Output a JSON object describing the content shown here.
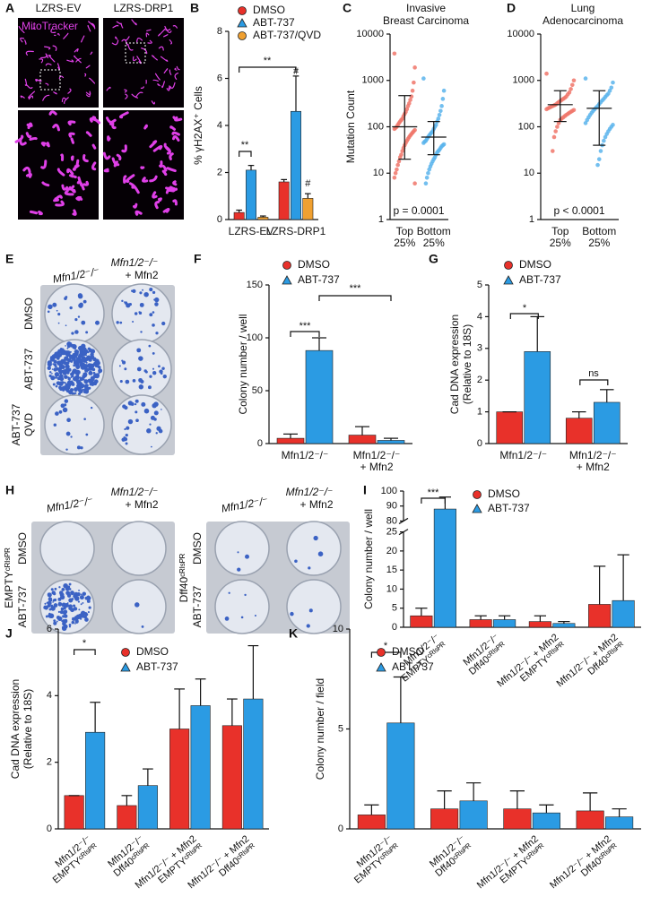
{
  "figures": [
    {
      "panel": "A",
      "columns": [
        "LZRS-EV",
        "LZRS-DRP1"
      ],
      "stain": "MitoTracker"
    },
    {
      "panel": "E",
      "columns": [
        [
          "Mfn1/2⁻/⁻"
        ],
        [
          "Mfn1/2⁻/⁻",
          "+ Mfn2"
        ]
      ],
      "rows": [
        [
          "DMSO"
        ],
        [
          "ABT-737"
        ],
        [
          "ABT-737",
          "QVD"
        ]
      ]
    },
    {
      "panel": "H",
      "plates": [
        {
          "label": "EMPTYᶜᴿᴵˢᴾᴿ",
          "columns": [
            [
              "Mfn1/2⁻/⁻"
            ],
            [
              "Mfn1/2⁻/⁻",
              "+ Mfn2"
            ]
          ],
          "rows": [
            "DMSO",
            "ABT-737"
          ]
        },
        {
          "label": "Dff40ᶜᴿᴵˢᴾᴿ",
          "columns": [
            [
              "Mfn1/2⁻/⁻"
            ],
            [
              "Mfn1/2⁻/⁻",
              "+ Mfn2"
            ]
          ],
          "rows": [
            "DMSO",
            "ABT-737"
          ]
        }
      ]
    }
  ],
  "chart_data": [
    {
      "panel": "B",
      "type": "bar",
      "ylabel": [
        "% γH2AX⁺ Cells"
      ],
      "categories": [
        [
          "LZRS-EV"
        ],
        [
          "LZRS-DRP1"
        ]
      ],
      "series": [
        {
          "name": "DMSO",
          "color": "#e8312a",
          "marker": "circle",
          "values": [
            0.3,
            1.6
          ],
          "errors": [
            0.1,
            0.1
          ]
        },
        {
          "name": "ABT-737",
          "color": "#2b9be3",
          "marker": "triangle",
          "values": [
            2.1,
            4.6
          ],
          "errors": [
            0.2,
            1.5
          ]
        },
        {
          "name": "ABT-737/QVD",
          "color": "#f0a030",
          "marker": "circle",
          "values": [
            0.1,
            0.9
          ],
          "errors": [
            0.05,
            0.2
          ]
        }
      ],
      "ylim": [
        0,
        8
      ],
      "yticks": [
        0,
        2,
        4,
        6,
        8
      ],
      "annotations": [
        "**",
        "**",
        "#",
        "#"
      ]
    },
    {
      "panel": "C",
      "type": "dot",
      "title": [
        "Invasive",
        "Breast Carcinoma"
      ],
      "ylabel": [
        "Mutation Count"
      ],
      "categories": [
        [
          "Top",
          "25%"
        ],
        [
          "Bottom",
          "25%"
        ]
      ],
      "colors": [
        "#f0766a",
        "#5ab4ec"
      ],
      "points": [
        [
          3800,
          1900,
          900,
          600,
          450,
          380,
          320,
          280,
          240,
          210,
          190,
          170,
          150,
          140,
          130,
          120,
          110,
          100,
          95,
          90,
          85,
          80,
          75,
          70,
          65,
          60,
          55,
          50,
          45,
          40,
          35,
          30,
          25,
          22,
          18,
          15,
          12,
          10,
          8,
          6
        ],
        [
          1100,
          600,
          400,
          280,
          220,
          180,
          150,
          130,
          110,
          100,
          90,
          80,
          75,
          70,
          65,
          60,
          55,
          50,
          48,
          45,
          42,
          40,
          38,
          35,
          32,
          30,
          28,
          25,
          22,
          20,
          18,
          16,
          14,
          12,
          10,
          8,
          6
        ]
      ],
      "means": [
        100,
        60
      ],
      "whiskers": [
        [
          20,
          470
        ],
        [
          25,
          130
        ]
      ],
      "log": true,
      "ylim": [
        1,
        10000
      ],
      "yticks": [
        1,
        10,
        100,
        1000,
        10000
      ],
      "annotations": [
        "p = 0.0001"
      ]
    },
    {
      "panel": "D",
      "type": "dot",
      "title": [
        "Lung",
        "Adenocarcinoma"
      ],
      "categories": [
        [
          "Top",
          "25%"
        ],
        [
          "Bottom",
          "25%"
        ]
      ],
      "colors": [
        "#f0766a",
        "#5ab4ec"
      ],
      "points": [
        [
          1400,
          1000,
          800,
          650,
          550,
          500,
          450,
          420,
          400,
          380,
          360,
          340,
          320,
          300,
          290,
          280,
          270,
          260,
          250,
          240,
          230,
          220,
          210,
          200,
          190,
          180,
          170,
          160,
          150,
          140,
          120,
          100,
          80,
          60,
          30
        ],
        [
          1100,
          900,
          700,
          600,
          520,
          480,
          440,
          400,
          370,
          340,
          310,
          280,
          260,
          240,
          220,
          200,
          180,
          160,
          140,
          120,
          110,
          100,
          90,
          80,
          70,
          60,
          50,
          40,
          30,
          20,
          15
        ]
      ],
      "means": [
        300,
        250
      ],
      "whiskers": [
        [
          130,
          600
        ],
        [
          40,
          600
        ]
      ],
      "log": true,
      "ylim": [
        1,
        10000
      ],
      "yticks": [
        1,
        10,
        100,
        1000,
        10000
      ],
      "annotations": [
        "p < 0.0001"
      ]
    },
    {
      "panel": "F",
      "type": "bar",
      "ylabel": [
        "Colony number / well"
      ],
      "categories": [
        [
          "Mfn1/2⁻/⁻"
        ],
        [
          "Mfn1/2⁻/⁻",
          "+ Mfn2"
        ]
      ],
      "series": [
        {
          "name": "DMSO",
          "color": "#e8312a",
          "marker": "circle",
          "values": [
            5,
            8
          ],
          "errors": [
            4,
            8
          ]
        },
        {
          "name": "ABT-737",
          "color": "#2b9be3",
          "marker": "triangle",
          "values": [
            88,
            3
          ],
          "errors": [
            12,
            2
          ]
        }
      ],
      "ylim": [
        0,
        150
      ],
      "yticks": [
        0,
        50,
        100,
        150
      ],
      "annotations": [
        "***",
        "***"
      ]
    },
    {
      "panel": "G",
      "type": "bar",
      "ylabel": [
        "Cad DNA expression",
        "(Relative to 18S)"
      ],
      "categories": [
        [
          "Mfn1/2⁻/⁻"
        ],
        [
          "Mfn1/2⁻/⁻",
          "+ Mfn2"
        ]
      ],
      "series": [
        {
          "name": "DMSO",
          "color": "#e8312a",
          "marker": "circle",
          "values": [
            1.0,
            0.8
          ],
          "errors": [
            0,
            0.2
          ]
        },
        {
          "name": "ABT-737",
          "color": "#2b9be3",
          "marker": "triangle",
          "values": [
            2.9,
            1.3
          ],
          "errors": [
            1.1,
            0.4
          ]
        }
      ],
      "ylim": [
        0,
        5
      ],
      "yticks": [
        0,
        1,
        2,
        3,
        4,
        5
      ],
      "annotations": [
        "*",
        "ns"
      ]
    },
    {
      "panel": "I",
      "type": "bar",
      "ylabel": [
        "Colony number / well"
      ],
      "categories": [
        [
          "Mfn1/2⁻/⁻",
          "EMPTYᶜᴿᴵˢᴾᴿ"
        ],
        [
          "Mfn1/2⁻/⁻",
          "Dff40ᶜᴿᴵˢᴾᴿ"
        ],
        [
          "Mfn1/2⁻/⁻ + Mfn2",
          "EMPTYᶜᴿᴵˢᴾᴿ"
        ],
        [
          "Mfn1/2⁻/⁻ + Mfn2",
          "Dff40ᶜᴿᴵˢᴾᴿ"
        ]
      ],
      "series": [
        {
          "name": "DMSO",
          "color": "#e8312a",
          "marker": "circle",
          "values": [
            3,
            2,
            1.5,
            6
          ],
          "errors": [
            2,
            1,
            1.5,
            10
          ]
        },
        {
          "name": "ABT-737",
          "color": "#2b9be3",
          "marker": "triangle",
          "values": [
            88,
            2,
            1,
            7
          ],
          "errors": [
            8,
            1,
            0.5,
            12
          ]
        }
      ],
      "ylim": [
        0,
        100
      ],
      "ybreak": [
        25,
        80
      ],
      "yticks": [
        0,
        5,
        10,
        15,
        20,
        25,
        80,
        90,
        100
      ],
      "annotations": [
        "***"
      ]
    },
    {
      "panel": "J",
      "type": "bar",
      "ylabel": [
        "Cad DNA expression",
        "(Relative to 18S)"
      ],
      "categories": [
        [
          "Mfn1/2⁻/⁻",
          "EMPTYᶜᴿᴵˢᴾᴿ"
        ],
        [
          "Mfn1/2⁻/⁻",
          "Dff40ᶜᴿᴵˢᴾᴿ"
        ],
        [
          "Mfn1/2⁻/⁻ + Mfn2",
          "EMPTYᶜᴿᴵˢᴾᴿ"
        ],
        [
          "Mfn1/2⁻/⁻ + Mfn2",
          "Dff40ᶜᴿᴵˢᴾᴿ"
        ]
      ],
      "series": [
        {
          "name": "DMSO",
          "color": "#e8312a",
          "marker": "circle",
          "values": [
            1.0,
            0.7,
            3.0,
            3.1
          ],
          "errors": [
            0,
            0.3,
            1.2,
            0.8
          ]
        },
        {
          "name": "ABT-737",
          "color": "#2b9be3",
          "marker": "triangle",
          "values": [
            2.9,
            1.3,
            3.7,
            3.9
          ],
          "errors": [
            0.9,
            0.5,
            0.8,
            1.6
          ]
        }
      ],
      "ylim": [
        0,
        6
      ],
      "yticks": [
        0,
        2,
        4,
        6
      ],
      "annotations": [
        "*"
      ]
    },
    {
      "panel": "K",
      "type": "bar",
      "ylabel": [
        "Colony number / field"
      ],
      "categories": [
        [
          "Mfn1/2⁻/⁻",
          "EMPTYᶜᴿᴵˢᴾᴿ"
        ],
        [
          "Mfn1/2⁻/⁻",
          "Dff40ᶜᴿᴵˢᴾᴿ"
        ],
        [
          "Mfn1/2⁻/⁻ + Mfn2",
          "EMPTYᶜᴿᴵˢᴾᴿ"
        ],
        [
          "Mfn1/2⁻/⁻ + Mfn2",
          "Dff40ᶜᴿᴵˢᴾᴿ"
        ]
      ],
      "series": [
        {
          "name": "DMSO",
          "color": "#e8312a",
          "marker": "circle",
          "values": [
            0.7,
            1.0,
            1.0,
            0.9
          ],
          "errors": [
            0.5,
            0.9,
            0.9,
            0.9
          ]
        },
        {
          "name": "ABT-737",
          "color": "#2b9be3",
          "marker": "triangle",
          "values": [
            5.3,
            1.4,
            0.8,
            0.6
          ],
          "errors": [
            2.3,
            0.9,
            0.4,
            0.4
          ]
        }
      ],
      "ylim": [
        0,
        10
      ],
      "yticks": [
        0,
        5,
        10
      ],
      "annotations": [
        "*"
      ]
    }
  ]
}
